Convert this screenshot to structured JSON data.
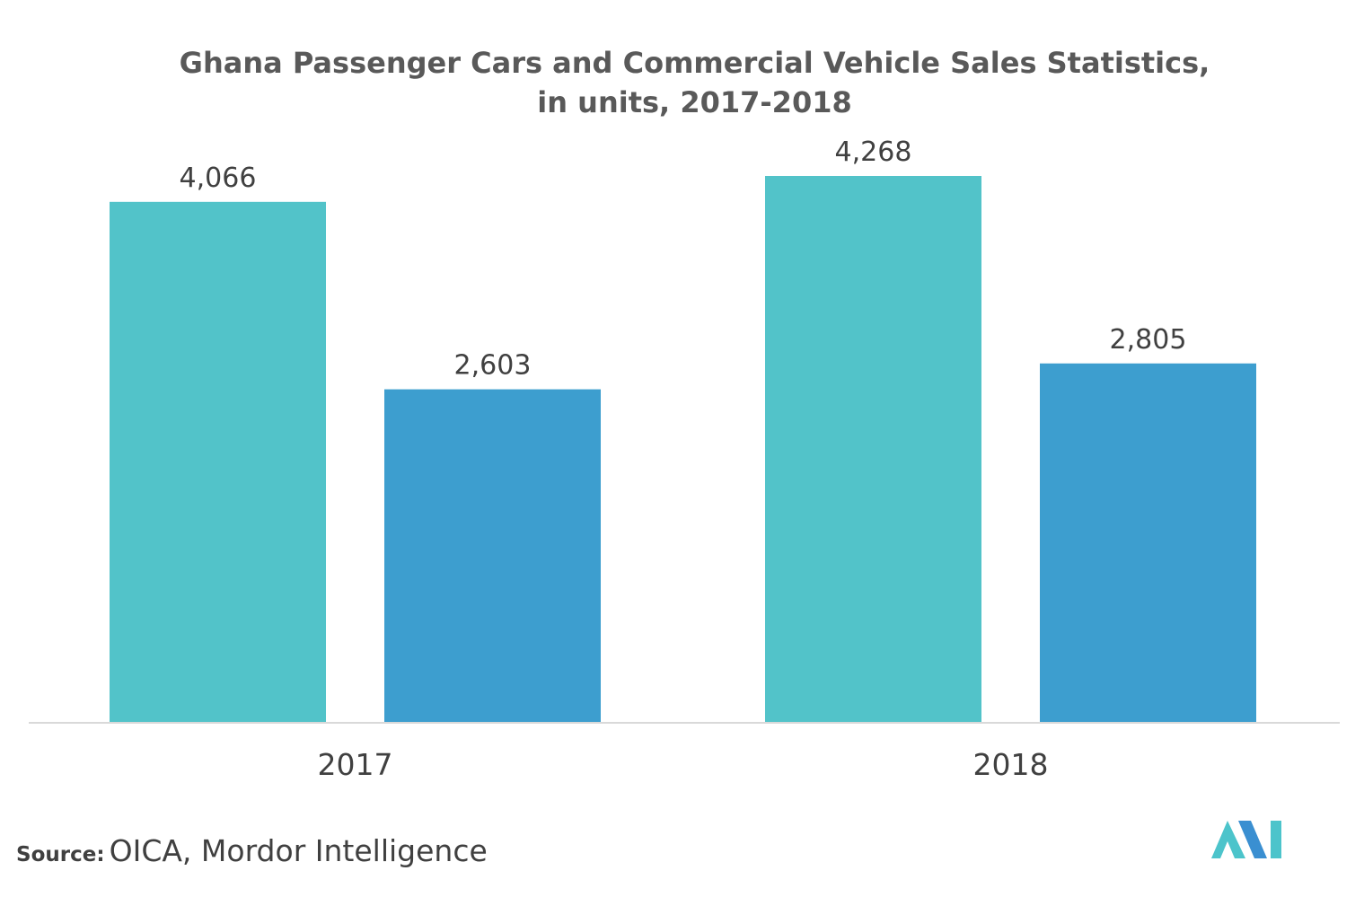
{
  "chart_data": {
    "type": "bar",
    "title_lines": [
      "Ghana Passenger Cars and Commercial Vehicle Sales Statistics,",
      "in units, 2017-2018"
    ],
    "categories": [
      "2017",
      "2018"
    ],
    "series": [
      {
        "values": [
          4066,
          4268
        ],
        "labels": [
          "4,066",
          "4,268"
        ],
        "color": "#52c3c9"
      },
      {
        "values": [
          2603,
          2805
        ],
        "labels": [
          "2,603",
          "2,805"
        ],
        "color": "#3d9ecf"
      }
    ],
    "ylim": [
      0,
      4268
    ],
    "grid": false,
    "legend": "none"
  },
  "colors": {
    "axis": "#d9d9d9",
    "text": "#404040",
    "logo_teal": "#4cc4cb",
    "logo_blue": "#3a8fd1"
  },
  "source": {
    "label": "Source:",
    "text": "OICA, Mordor Intelligence"
  },
  "logo": {
    "icon": "mordor-intelligence-logo-icon"
  }
}
